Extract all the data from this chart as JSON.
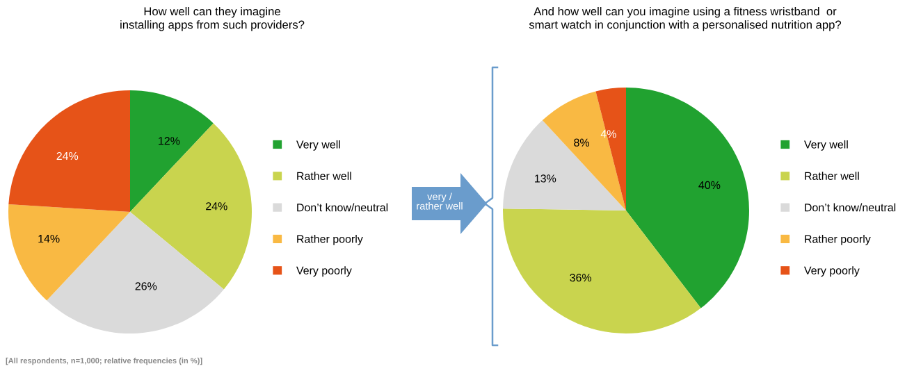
{
  "chart_data": [
    {
      "type": "pie",
      "title": "How well can they imagine\ninstalling apps from such providers?",
      "categories": [
        "Very well",
        "Rather well",
        "Don’t know/neutral",
        "Rather poorly",
        "Very poorly"
      ],
      "values": [
        12,
        24,
        26,
        14,
        24
      ],
      "value_labels": [
        "12%",
        "24%",
        "26%",
        "14%",
        "24%"
      ],
      "colors": [
        "#21a230",
        "#c9d44e",
        "#dadada",
        "#f9b943",
        "#e65318"
      ],
      "legend": "right",
      "annotations": [
        "[All respondents, n=1,000; relative frequencies (in %)]"
      ]
    },
    {
      "type": "pie",
      "title": "And how well can you imagine using a fitness wristband  or\nsmart watch in conjunction with a personalised nutrition app?",
      "categories": [
        "Very well",
        "Rather well",
        "Don’t know/neutral",
        "Rather poorly",
        "Very poorly"
      ],
      "values": [
        40,
        36,
        13,
        8,
        4
      ],
      "value_labels": [
        "40%",
        "36%",
        "13%",
        "8%",
        "4%"
      ],
      "colors": [
        "#21a230",
        "#c9d44e",
        "#dadada",
        "#f9b943",
        "#e65318"
      ],
      "legend": "right",
      "annotations": [
        "very /\nrather well"
      ]
    }
  ]
}
